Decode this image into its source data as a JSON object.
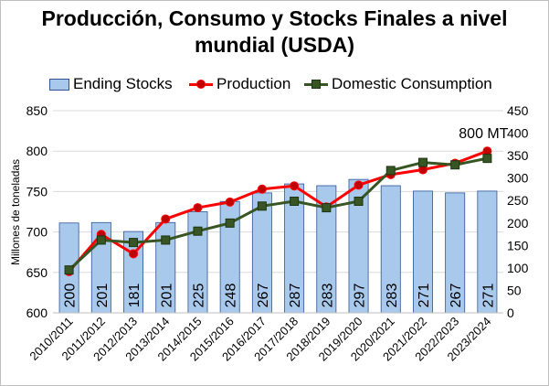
{
  "chart_data": {
    "type": "bar+line",
    "title_lines": [
      "Producción, Consumo y Stocks Finales a nivel",
      "mundial (USDA)"
    ],
    "ylabel": "Millones de toneladas",
    "y2label": "",
    "categories": [
      "2010/2011",
      "2011/2012",
      "2012/2013",
      "2013/2014",
      "2014/2015",
      "2015/2016",
      "2016/2017",
      "2017/2018",
      "2018/2019",
      "2019/2020",
      "2020/2021",
      "2021/2022",
      "2022/2023",
      "2023/2024"
    ],
    "ylim": [
      600,
      850
    ],
    "yticks": [
      600,
      650,
      700,
      750,
      800,
      850
    ],
    "y2lim": [
      0,
      450
    ],
    "y2ticks": [
      0,
      50,
      100,
      150,
      200,
      250,
      300,
      350,
      400,
      450
    ],
    "series": [
      {
        "name": "Ending Stocks",
        "type": "bar",
        "axis": "right",
        "color": "#a8c9ec",
        "edge": "#2f5597",
        "values": [
          200,
          201,
          181,
          201,
          225,
          248,
          267,
          287,
          283,
          297,
          283,
          271,
          267,
          271
        ]
      },
      {
        "name": "Production",
        "type": "line",
        "axis": "left",
        "color": "#ff0000",
        "marker": "circle",
        "marker_fill": "#c00000",
        "values": [
          651,
          697,
          673,
          716,
          730,
          737,
          753,
          757,
          731,
          758,
          771,
          777,
          785,
          800
        ]
      },
      {
        "name": "Domestic Consumption",
        "type": "line",
        "axis": "left",
        "color": "#375623",
        "marker": "square",
        "marker_fill": "#375623",
        "values": [
          653,
          690,
          687,
          690,
          701,
          711,
          732,
          738,
          730,
          738,
          776,
          786,
          783,
          791
        ]
      }
    ],
    "annotation": {
      "text": "800 MT",
      "category": "2023/2024"
    },
    "legend_position": "top",
    "grid": true
  }
}
